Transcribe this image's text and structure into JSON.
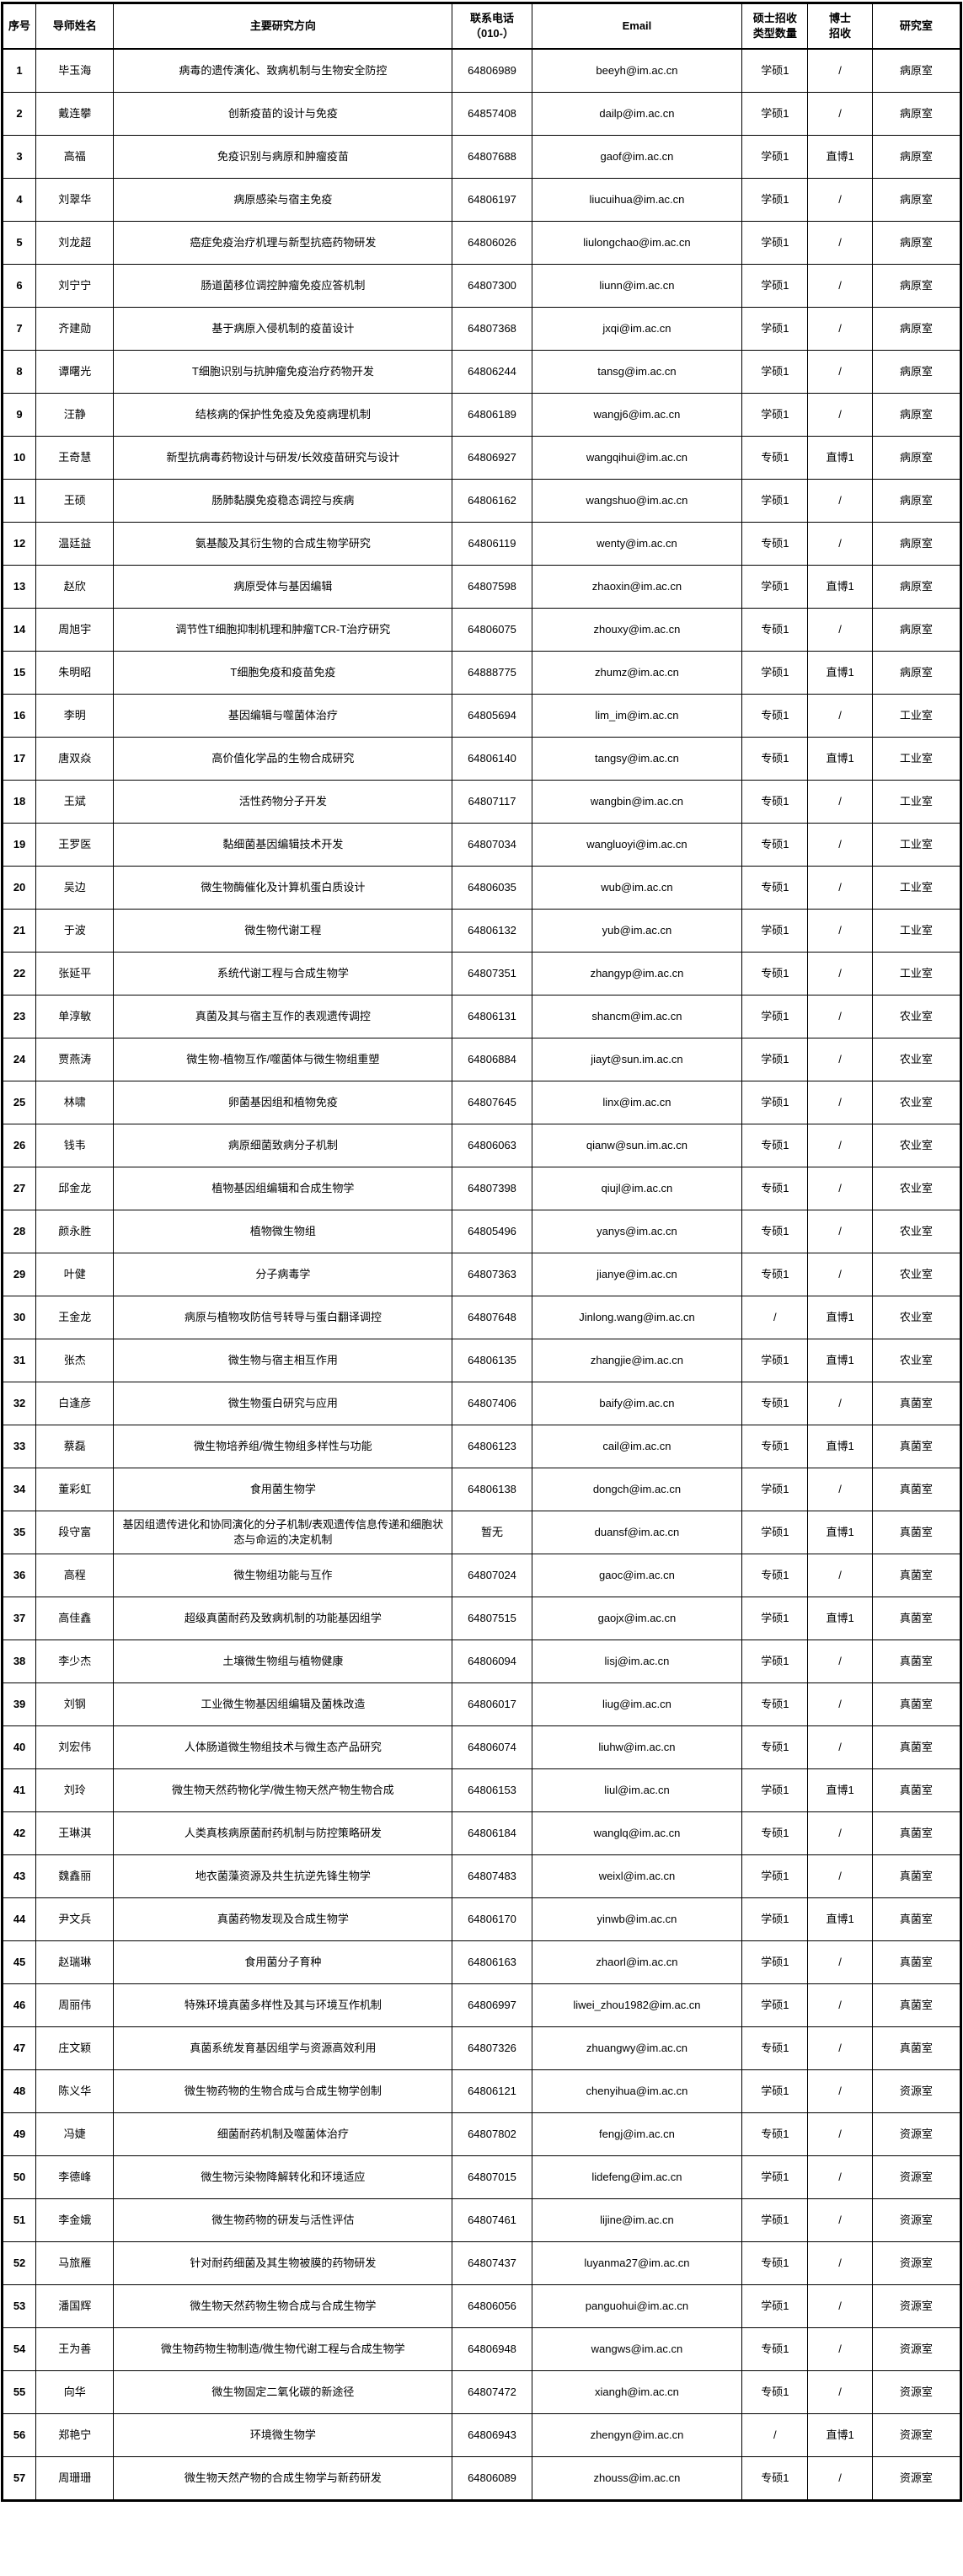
{
  "table": {
    "columns": [
      {
        "key": "index",
        "label": "序号"
      },
      {
        "key": "name",
        "label": "导师姓名"
      },
      {
        "key": "direction",
        "label": "主要研究方向"
      },
      {
        "key": "phone",
        "label": "联系电话\n（010-）"
      },
      {
        "key": "email",
        "label": "Email"
      },
      {
        "key": "master",
        "label": "硕士招收\n类型数量"
      },
      {
        "key": "doctor",
        "label": "博士\n招收"
      },
      {
        "key": "lab",
        "label": "研究室"
      }
    ],
    "rows": [
      [
        "1",
        "毕玉海",
        "病毒的遗传演化、致病机制与生物安全防控",
        "64806989",
        "beeyh@im.ac.cn",
        "学硕1",
        "/",
        "病原室"
      ],
      [
        "2",
        "戴连攀",
        "创新疫苗的设计与免疫",
        "64857408",
        "dailp@im.ac.cn",
        "学硕1",
        "/",
        "病原室"
      ],
      [
        "3",
        "高福",
        "免疫识别与病原和肿瘤疫苗",
        "64807688",
        "gaof@im.ac.cn",
        "学硕1",
        "直博1",
        "病原室"
      ],
      [
        "4",
        "刘翠华",
        "病原感染与宿主免疫",
        "64806197",
        "liucuihua@im.ac.cn",
        "学硕1",
        "/",
        "病原室"
      ],
      [
        "5",
        "刘龙超",
        "癌症免疫治疗机理与新型抗癌药物研发",
        "64806026",
        "liulongchao@im.ac.cn",
        "学硕1",
        "/",
        "病原室"
      ],
      [
        "6",
        "刘宁宁",
        "肠道菌移位调控肿瘤免疫应答机制",
        "64807300",
        "liunn@im.ac.cn",
        "学硕1",
        "/",
        "病原室"
      ],
      [
        "7",
        "齐建勋",
        "基于病原入侵机制的疫苗设计",
        "64807368",
        "jxqi@im.ac.cn",
        "学硕1",
        "/",
        "病原室"
      ],
      [
        "8",
        "谭曙光",
        "T细胞识别与抗肿瘤免疫治疗药物开发",
        "64806244",
        "tansg@im.ac.cn",
        "学硕1",
        "/",
        "病原室"
      ],
      [
        "9",
        "汪静",
        "结核病的保护性免疫及免疫病理机制",
        "64806189",
        "wangj6@im.ac.cn",
        "学硕1",
        "/",
        "病原室"
      ],
      [
        "10",
        "王奇慧",
        "新型抗病毒药物设计与研发/长效疫苗研究与设计",
        "64806927",
        "wangqihui@im.ac.cn",
        "专硕1",
        "直博1",
        "病原室"
      ],
      [
        "11",
        "王硕",
        "肠肺黏膜免疫稳态调控与疾病",
        "64806162",
        "wangshuo@im.ac.cn",
        "学硕1",
        "/",
        "病原室"
      ],
      [
        "12",
        "温廷益",
        "氨基酸及其衍生物的合成生物学研究",
        "64806119",
        "wenty@im.ac.cn",
        "专硕1",
        "/",
        "病原室"
      ],
      [
        "13",
        "赵欣",
        "病原受体与基因编辑",
        "64807598",
        "zhaoxin@im.ac.cn",
        "学硕1",
        "直博1",
        "病原室"
      ],
      [
        "14",
        "周旭宇",
        "调节性T细胞抑制机理和肿瘤TCR-T治疗研究",
        "64806075",
        "zhouxy@im.ac.cn",
        "专硕1",
        "/",
        "病原室"
      ],
      [
        "15",
        "朱明昭",
        "T细胞免疫和疫苗免疫",
        "64888775",
        "zhumz@im.ac.cn",
        "学硕1",
        "直博1",
        "病原室"
      ],
      [
        "16",
        "李明",
        "基因编辑与噬菌体治疗",
        "64805694",
        "lim_im@im.ac.cn",
        "专硕1",
        "/",
        "工业室"
      ],
      [
        "17",
        "唐双焱",
        "高价值化学品的生物合成研究",
        "64806140",
        "tangsy@im.ac.cn",
        "专硕1",
        "直博1",
        "工业室"
      ],
      [
        "18",
        "王斌",
        "活性药物分子开发",
        "64807117",
        "wangbin@im.ac.cn",
        "专硕1",
        "/",
        "工业室"
      ],
      [
        "19",
        "王罗医",
        "黏细菌基因编辑技术开发",
        "64807034",
        "wangluoyi@im.ac.cn",
        "专硕1",
        "/",
        "工业室"
      ],
      [
        "20",
        "吴边",
        "微生物酶催化及计算机蛋白质设计",
        "64806035",
        "wub@im.ac.cn",
        "专硕1",
        "/",
        "工业室"
      ],
      [
        "21",
        "于波",
        "微生物代谢工程",
        "64806132",
        "yub@im.ac.cn",
        "学硕1",
        "/",
        "工业室"
      ],
      [
        "22",
        "张延平",
        "系统代谢工程与合成生物学",
        "64807351",
        "zhangyp@im.ac.cn",
        "专硕1",
        "/",
        "工业室"
      ],
      [
        "23",
        "单淳敏",
        "真菌及其与宿主互作的表观遗传调控",
        "64806131",
        "shancm@im.ac.cn",
        "学硕1",
        "/",
        "农业室"
      ],
      [
        "24",
        "贾燕涛",
        "微生物-植物互作/噬菌体与微生物组重塑",
        "64806884",
        "jiayt@sun.im.ac.cn",
        "学硕1",
        "/",
        "农业室"
      ],
      [
        "25",
        "林啸",
        "卵菌基因组和植物免疫",
        "64807645",
        "linx@im.ac.cn",
        "学硕1",
        "/",
        "农业室"
      ],
      [
        "26",
        "钱韦",
        "病原细菌致病分子机制",
        "64806063",
        "qianw@sun.im.ac.cn",
        "专硕1",
        "/",
        "农业室"
      ],
      [
        "27",
        "邱金龙",
        "植物基因组编辑和合成生物学",
        "64807398",
        "qiujl@im.ac.cn",
        "专硕1",
        "/",
        "农业室"
      ],
      [
        "28",
        "颜永胜",
        "植物微生物组",
        "64805496",
        "yanys@im.ac.cn",
        "专硕1",
        "/",
        "农业室"
      ],
      [
        "29",
        "叶健",
        "分子病毒学",
        "64807363",
        "jianye@im.ac.cn",
        "专硕1",
        "/",
        "农业室"
      ],
      [
        "30",
        "王金龙",
        "病原与植物攻防信号转导与蛋白翻译调控",
        "64807648",
        "Jinlong.wang@im.ac.cn",
        "/",
        "直博1",
        "农业室"
      ],
      [
        "31",
        "张杰",
        "微生物与宿主相互作用",
        "64806135",
        "zhangjie@im.ac.cn",
        "学硕1",
        "直博1",
        "农业室"
      ],
      [
        "32",
        "白逢彦",
        "微生物蛋白研究与应用",
        "64807406",
        "baify@im.ac.cn",
        "专硕1",
        "/",
        "真菌室"
      ],
      [
        "33",
        "蔡磊",
        "微生物培养组/微生物组多样性与功能",
        "64806123",
        "cail@im.ac.cn",
        "专硕1",
        "直博1",
        "真菌室"
      ],
      [
        "34",
        "董彩虹",
        "食用菌生物学",
        "64806138",
        "dongch@im.ac.cn",
        "学硕1",
        "/",
        "真菌室"
      ],
      [
        "35",
        "段守富",
        "基因组遗传进化和协同演化的分子机制/表观遗传信息传递和细胞状态与命运的决定机制",
        "暂无",
        "duansf@im.ac.cn",
        "学硕1",
        "直博1",
        "真菌室"
      ],
      [
        "36",
        "高程",
        "微生物组功能与互作",
        "64807024",
        "gaoc@im.ac.cn",
        "专硕1",
        "/",
        "真菌室"
      ],
      [
        "37",
        "高佳鑫",
        "超级真菌耐药及致病机制的功能基因组学",
        "64807515",
        "gaojx@im.ac.cn",
        "学硕1",
        "直博1",
        "真菌室"
      ],
      [
        "38",
        "李少杰",
        "土壤微生物组与植物健康",
        "64806094",
        "lisj@im.ac.cn",
        "学硕1",
        "/",
        "真菌室"
      ],
      [
        "39",
        "刘钢",
        "工业微生物基因组编辑及菌株改造",
        "64806017",
        "liug@im.ac.cn",
        "专硕1",
        "/",
        "真菌室"
      ],
      [
        "40",
        "刘宏伟",
        "人体肠道微生物组技术与微生态产品研究",
        "64806074",
        "liuhw@im.ac.cn",
        "专硕1",
        "/",
        "真菌室"
      ],
      [
        "41",
        "刘玲",
        "微生物天然药物化学/微生物天然产物生物合成",
        "64806153",
        "liul@im.ac.cn",
        "学硕1",
        "直博1",
        "真菌室"
      ],
      [
        "42",
        "王琳淇",
        "人类真核病原菌耐药机制与防控策略研发",
        "64806184",
        "wanglq@im.ac.cn",
        "专硕1",
        "/",
        "真菌室"
      ],
      [
        "43",
        "魏鑫丽",
        "地衣菌藻资源及共生抗逆先锋生物学",
        "64807483",
        "weixl@im.ac.cn",
        "学硕1",
        "/",
        "真菌室"
      ],
      [
        "44",
        "尹文兵",
        "真菌药物发现及合成生物学",
        "64806170",
        "yinwb@im.ac.cn",
        "学硕1",
        "直博1",
        "真菌室"
      ],
      [
        "45",
        "赵瑞琳",
        "食用菌分子育种",
        "64806163",
        "zhaorl@im.ac.cn",
        "学硕1",
        "/",
        "真菌室"
      ],
      [
        "46",
        "周丽伟",
        "特殊环境真菌多样性及其与环境互作机制",
        "64806997",
        "liwei_zhou1982@im.ac.cn",
        "学硕1",
        "/",
        "真菌室"
      ],
      [
        "47",
        "庄文颖",
        "真菌系统发育基因组学与资源高效利用",
        "64807326",
        "zhuangwy@im.ac.cn",
        "专硕1",
        "/",
        "真菌室"
      ],
      [
        "48",
        "陈义华",
        "微生物药物的生物合成与合成生物学创制",
        "64806121",
        "chenyihua@im.ac.cn",
        "学硕1",
        "/",
        "资源室"
      ],
      [
        "49",
        "冯婕",
        "细菌耐药机制及噬菌体治疗",
        "64807802",
        "fengj@im.ac.cn",
        "专硕1",
        "/",
        "资源室"
      ],
      [
        "50",
        "李德峰",
        "微生物污染物降解转化和环境适应",
        "64807015",
        "lidefeng@im.ac.cn",
        "学硕1",
        "/",
        "资源室"
      ],
      [
        "51",
        "李金娥",
        "微生物药物的研发与活性评估",
        "64807461",
        "lijine@im.ac.cn",
        "学硕1",
        "/",
        "资源室"
      ],
      [
        "52",
        "马旅雁",
        "针对耐药细菌及其生物被膜的药物研发",
        "64807437",
        "luyanma27@im.ac.cn",
        "专硕1",
        "/",
        "资源室"
      ],
      [
        "53",
        "潘国辉",
        "微生物天然药物生物合成与合成生物学",
        "64806056",
        "panguohui@im.ac.cn",
        "学硕1",
        "/",
        "资源室"
      ],
      [
        "54",
        "王为善",
        "微生物药物生物制造/微生物代谢工程与合成生物学",
        "64806948",
        "wangws@im.ac.cn",
        "专硕1",
        "/",
        "资源室"
      ],
      [
        "55",
        "向华",
        "微生物固定二氧化碳的新途径",
        "64807472",
        "xiangh@im.ac.cn",
        "专硕1",
        "/",
        "资源室"
      ],
      [
        "56",
        "郑艳宁",
        "环境微生物学",
        "64806943",
        "zhengyn@im.ac.cn",
        "/",
        "直博1",
        "资源室"
      ],
      [
        "57",
        "周珊珊",
        "微生物天然产物的合成生物学与新药研发",
        "64806089",
        "zhouss@im.ac.cn",
        "专硕1",
        "/",
        "资源室"
      ]
    ]
  }
}
